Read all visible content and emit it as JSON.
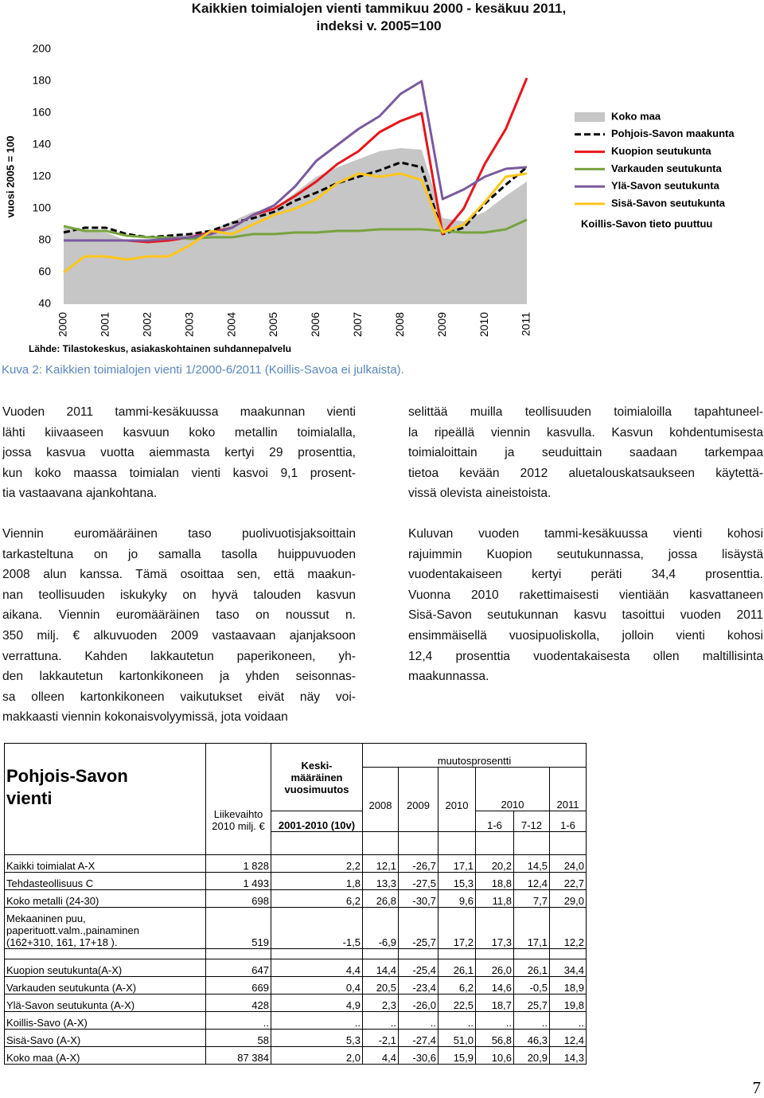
{
  "chart_data": {
    "type": "line",
    "title": "Kaikkien toimialojen vienti tammikuu 2000 - kesäkuu 2011, indeksi v. 2005=100",
    "y_label": "vuosi 2005 = 100",
    "source": "Lähde: Tilastokeskus, asiakaskohtainen suhdannepalvelu",
    "annotation": "Koillis-Savon tieto puuttuu",
    "categories": [
      "2000",
      null,
      "2001",
      null,
      "2002",
      null,
      "2003",
      null,
      "2004",
      null,
      "2005",
      null,
      "2006",
      null,
      "2007",
      null,
      "2008",
      null,
      "2009",
      null,
      "2010",
      null,
      "2011"
    ],
    "ylim": [
      40,
      200
    ],
    "yticks": [
      40,
      60,
      80,
      100,
      120,
      140,
      160,
      180,
      200
    ],
    "grid": false,
    "legend": "right",
    "series": [
      {
        "name": "Koko maa",
        "color": "#c6c6c6",
        "fill": true,
        "values": [
          88,
          86,
          85,
          80,
          80,
          82,
          84,
          86,
          92,
          98,
          100,
          110,
          120,
          126,
          131,
          136,
          138,
          137,
          94,
          92,
          98,
          108,
          117
        ]
      },
      {
        "name": "Pohjois-Savon maakunta",
        "color": "#000000",
        "dash": true,
        "values": [
          85,
          88,
          88,
          84,
          82,
          83,
          84,
          86,
          91,
          94,
          98,
          105,
          110,
          116,
          120,
          124,
          129,
          126,
          84,
          88,
          103,
          115,
          126
        ]
      },
      {
        "name": "Kuopion seutukunta",
        "color": "#e8151b",
        "values": [
          80,
          80,
          80,
          80,
          79,
          80,
          82,
          85,
          88,
          96,
          100,
          108,
          117,
          128,
          136,
          148,
          155,
          160,
          84,
          100,
          128,
          150,
          182
        ]
      },
      {
        "name": "Varkauden seutukunta",
        "color": "#77a33f",
        "values": [
          89,
          86,
          86,
          83,
          82,
          82,
          81,
          82,
          82,
          84,
          84,
          85,
          85,
          86,
          86,
          87,
          87,
          87,
          86,
          85,
          85,
          87,
          93
        ]
      },
      {
        "name": "Ylä-Savon seutukunta",
        "color": "#7a5a9e",
        "values": [
          80,
          80,
          80,
          80,
          80,
          81,
          82,
          84,
          88,
          96,
          102,
          114,
          130,
          140,
          150,
          158,
          172,
          180,
          106,
          112,
          120,
          125,
          126
        ]
      },
      {
        "name": "Sisä-Savon seutukunta",
        "color": "#ffc619",
        "values": [
          60,
          70,
          70,
          68,
          70,
          70,
          77,
          86,
          84,
          90,
          96,
          100,
          106,
          116,
          122,
          120,
          122,
          118,
          85,
          90,
          104,
          120,
          122
        ]
      }
    ]
  },
  "caption": "Kuva 2: Kaikkien toimialojen vienti 1/2000-6/2011 (Koillis-Savoa ei julkaista).",
  "body": {
    "left": [
      [
        "Vuoden 2011 tammi-kesäkuussa maakunnan vienti",
        "lähti kiivaaseen kasvuun koko metallin toimialalla,",
        "jossa kasvua vuotta aiemmasta kertyi 29 prosenttia,",
        "kun koko maassa toimialan vienti kasvoi 9,1 prosent-",
        "tia vastaavana ajankohtana."
      ],
      [
        "Viennin euromääräinen taso puolivuotisjaksoittain",
        "tarkasteltuna on jo samalla tasolla huippuvuoden",
        "2008 alun kanssa. Tämä osoittaa sen, että maakun-",
        "nan teollisuuden iskukyky on hyvä talouden kasvun",
        "aikana. Viennin euromääräinen taso on noussut n.",
        "350 milj. € alkuvuoden 2009 vastaavaan ajanjaksoon",
        "verrattuna. Kahden lakkautetun paperikoneen, yh-",
        "den lakkautetun kartonkikoneen ja yhden seisonnas-",
        "sa olleen kartonkikoneen vaikutukset eivät näy voi-",
        "makkaasti viennin kokonaisvolyymissä, jota voidaan"
      ]
    ],
    "right": [
      [
        "selittää muilla teollisuuden toimialoilla tapahtuneel-",
        "la ripeällä viennin kasvulla. Kasvun kohdentumisesta",
        "toimialoittain ja seuduittain saadaan tarkempaa",
        "tietoa kevään 2012 aluetalouskatsaukseen käytettä-",
        "vissä olevista aineistoista."
      ],
      [
        "Kuluvan vuoden tammi-kesäkuussa vienti kohosi",
        "rajuimmin Kuopion seutukunnassa, jossa lisäystä",
        "vuodentakaiseen kertyi peräti 34,4 prosenttia.",
        "Vuonna 2010 rakettimaisesti vientiään kasvattaneen",
        "Sisä-Savon seutukunnan kasvu tasoittui vuoden 2011",
        "ensimmäisellä vuosipuoliskolla, jolloin vienti kohosi",
        "12,4 prosenttia vuodentakaisesta ollen maltillisinta",
        "maakunnassa."
      ]
    ]
  },
  "table": {
    "title": "Pohjois-Savon vienti",
    "turnover": [
      "Liikevaihto",
      "2010 milj. €"
    ],
    "average": [
      "Keski-",
      "määräinen",
      "vuosimuutos"
    ],
    "average_period": "2001-2010 (10v)",
    "change": "muutosprosentti",
    "years": [
      "2008",
      "2009",
      "2010",
      "2010",
      "2011"
    ],
    "periods": [
      "1-6",
      "7-12",
      "1-6"
    ],
    "groups": [
      [
        {
          "label": [
            "Kaikki toimialat A-X"
          ],
          "cells": [
            "1 828",
            "2,2",
            "12,1",
            "-26,7",
            "17,1",
            "20,2",
            "14,5",
            "24,0"
          ]
        },
        {
          "label": [
            "Tehdasteollisuus C"
          ],
          "cells": [
            "1 493",
            "1,8",
            "13,3",
            "-27,5",
            "15,3",
            "18,8",
            "12,4",
            "22,7"
          ]
        },
        {
          "label": [
            "Koko metalli (24-30)"
          ],
          "cells": [
            "698",
            "6,2",
            "26,8",
            "-30,7",
            "9,6",
            "11,8",
            "7,7",
            "29,0"
          ]
        },
        {
          "label": [
            "Mekaaninen puu,",
            "paperituott.valm.,painaminen",
            "(162+310, 161, 17+18 )."
          ],
          "cells": [
            "519",
            "-1,5",
            "-6,9",
            "-25,7",
            "17,2",
            "17,3",
            "17,1",
            "12,2"
          ]
        }
      ],
      [
        {
          "label": [
            "Kuopion seutukunta(A-X)"
          ],
          "cells": [
            "647",
            "4,4",
            "14,4",
            "-25,4",
            "26,1",
            "26,0",
            "26,1",
            "34,4"
          ]
        },
        {
          "label": [
            "Varkauden seutukunta (A-X)"
          ],
          "cells": [
            "669",
            "0,4",
            "20,5",
            "-23,4",
            "6,2",
            "14,6",
            "-0,5",
            "18,9"
          ]
        },
        {
          "label": [
            "Ylä-Savon seutukunta (A-X)"
          ],
          "cells": [
            "428",
            "4,9",
            "2,3",
            "-26,0",
            "22,5",
            "18,7",
            "25,7",
            "19,8"
          ]
        },
        {
          "label": [
            "Koillis-Savo (A-X)"
          ],
          "cells": [
            "..",
            "..",
            "..",
            "..",
            "..",
            "..",
            "..",
            ".."
          ]
        },
        {
          "label": [
            "Sisä-Savo (A-X)"
          ],
          "cells": [
            "58",
            "5,3",
            "-2,1",
            "-27,4",
            "51,0",
            "56,8",
            "46,3",
            "12,4"
          ]
        },
        {
          "label": [
            "Koko maa (A-X)"
          ],
          "cells": [
            "87 384",
            "2,0",
            "4,4",
            "-30,6",
            "15,9",
            "10,6",
            "20,9",
            "14,3"
          ]
        }
      ]
    ]
  },
  "page_number": "7"
}
